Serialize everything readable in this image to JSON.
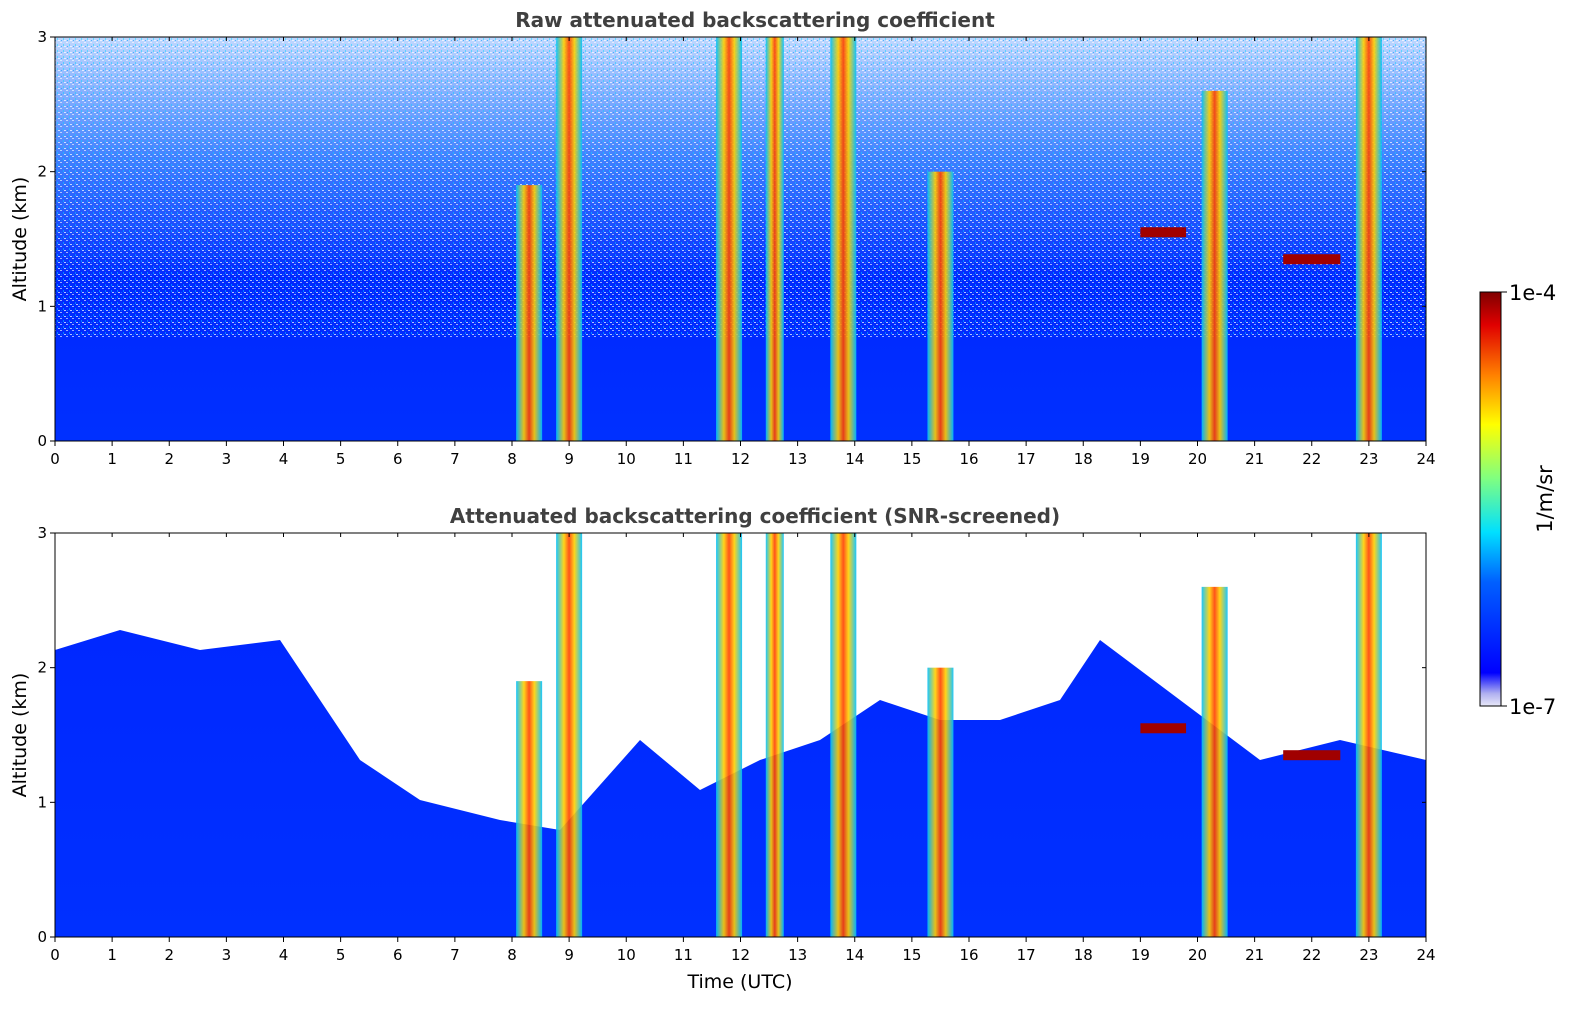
{
  "chart_data": [
    {
      "type": "heatmap",
      "title": "Raw attenuated backscattering coefficient",
      "xlabel": "",
      "ylabel": "Altitude (km)",
      "xlim": [
        0,
        24
      ],
      "ylim": [
        0,
        3
      ],
      "xticks": [
        "0",
        "1",
        "2",
        "3",
        "4",
        "5",
        "6",
        "7",
        "8",
        "9",
        "10",
        "11",
        "12",
        "13",
        "14",
        "15",
        "16",
        "17",
        "18",
        "19",
        "20",
        "21",
        "22",
        "23",
        "24"
      ],
      "yticks": [
        "0",
        "1",
        "2",
        "3"
      ],
      "screened": false,
      "features": [
        {
          "kind": "column",
          "x": 8.3,
          "top": 1.9,
          "intensity": "high"
        },
        {
          "kind": "column",
          "x": 9.0,
          "top": 3.0,
          "intensity": "high"
        },
        {
          "kind": "column",
          "x": 11.8,
          "top": 3.0,
          "intensity": "high"
        },
        {
          "kind": "column",
          "x": 12.6,
          "top": 3.0,
          "intensity": "medium"
        },
        {
          "kind": "column",
          "x": 13.8,
          "top": 3.0,
          "intensity": "high"
        },
        {
          "kind": "column",
          "x": 15.5,
          "top": 2.0,
          "intensity": "high"
        },
        {
          "kind": "column",
          "x": 20.3,
          "top": 2.6,
          "intensity": "high"
        },
        {
          "kind": "column",
          "x": 23.0,
          "top": 3.0,
          "intensity": "high"
        },
        {
          "kind": "cloud_layer",
          "x_start": 19.0,
          "x_end": 19.8,
          "altitude": 1.55
        },
        {
          "kind": "cloud_layer",
          "x_start": 21.5,
          "x_end": 22.5,
          "altitude": 1.35
        }
      ]
    },
    {
      "type": "heatmap",
      "title": "Attenuated backscattering coefficient (SNR-screened)",
      "xlabel": "Time (UTC)",
      "ylabel": "Altitude (km)",
      "xlim": [
        0,
        24
      ],
      "ylim": [
        0,
        3
      ],
      "xticks": [
        "0",
        "1",
        "2",
        "3",
        "4",
        "5",
        "6",
        "7",
        "8",
        "9",
        "10",
        "11",
        "12",
        "13",
        "14",
        "15",
        "16",
        "17",
        "18",
        "19",
        "20",
        "21",
        "22",
        "23",
        "24"
      ],
      "yticks": [
        "0",
        "1",
        "2",
        "3"
      ],
      "screened": true
    }
  ],
  "colorbar": {
    "label": "1/m/sr",
    "max_label": "1e-4",
    "min_label": "1e-7",
    "colormap": "jet",
    "scale": "log",
    "colors": [
      "#00007f",
      "#0000ff",
      "#007fff",
      "#00ffff",
      "#7fff7f",
      "#ffff00",
      "#ff7f00",
      "#ff0000",
      "#7f0000"
    ]
  }
}
